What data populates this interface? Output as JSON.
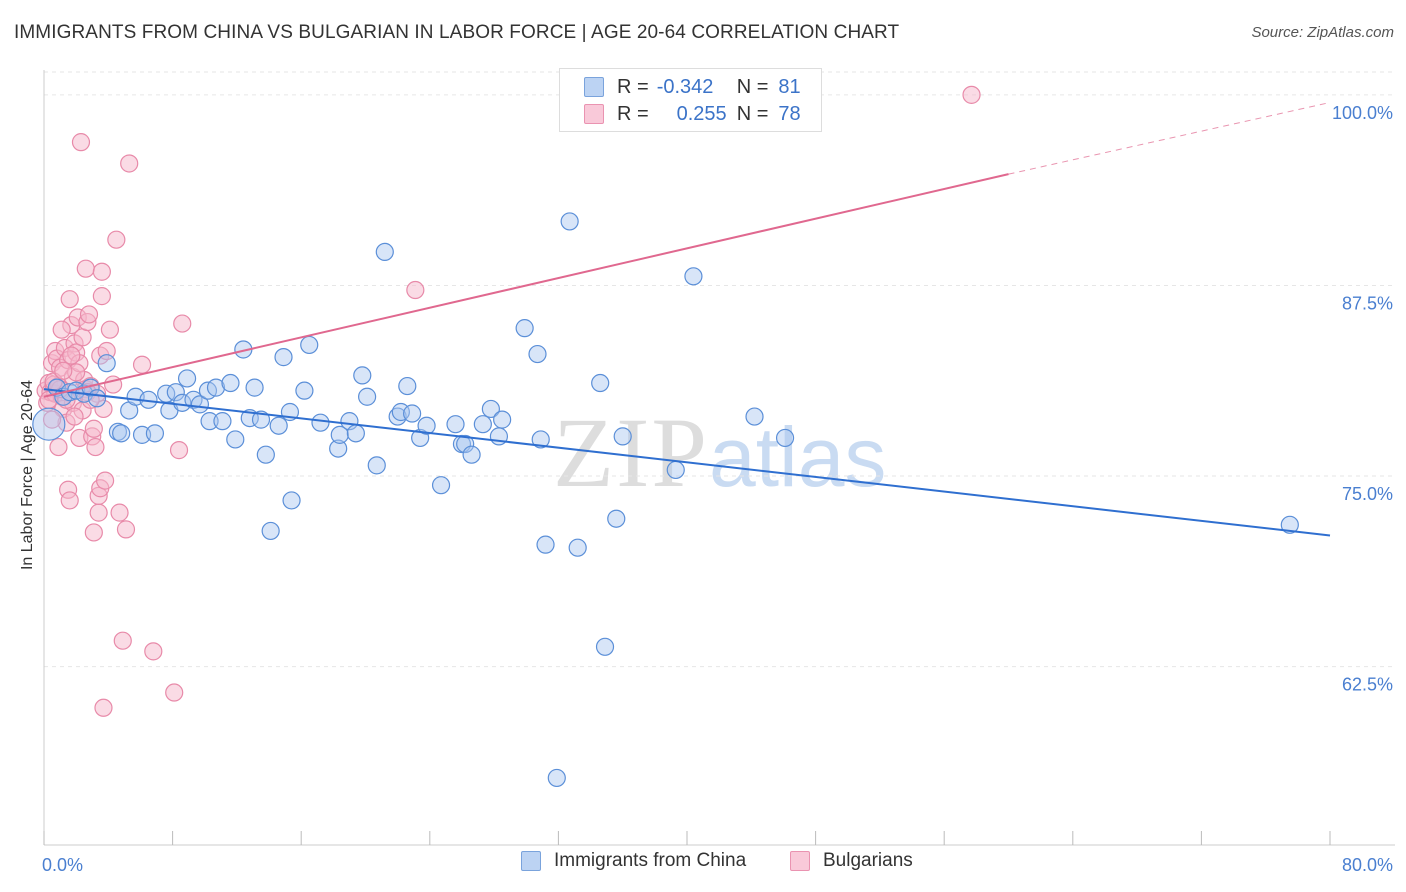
{
  "header": {
    "title": "IMMIGRANTS FROM CHINA VS BULGARIAN IN LABOR FORCE | AGE 20-64 CORRELATION CHART",
    "source": "Source: ZipAtlas.com"
  },
  "watermark": {
    "zip": "ZIP",
    "atlas": "atlas"
  },
  "legend_top": {
    "rows": [
      {
        "r_label": "R =",
        "r_value": "-0.342",
        "n_label": "N =",
        "n_value": "81"
      },
      {
        "r_label": "R =",
        "r_value": "0.255",
        "n_label": "N =",
        "n_value": "78"
      }
    ]
  },
  "legend_bottom": {
    "items": [
      {
        "label": "Immigrants from China"
      },
      {
        "label": "Bulgarians"
      }
    ]
  },
  "colors": {
    "china_fill": "#a9c6f0",
    "china_stroke": "#5b8fd8",
    "china_line": "#2f6fd0",
    "bulgarian_fill": "#f6b7cc",
    "bulgarian_stroke": "#e88aa9",
    "bulgarian_line": "#e0688f",
    "tick_text": "#4a7fd0",
    "grid": "#e6e6e6"
  },
  "chart_data": {
    "type": "scatter",
    "title": "IMMIGRANTS FROM CHINA VS BULGARIAN IN LABOR FORCE | AGE 20-64 CORRELATION CHART",
    "xlabel": "",
    "ylabel": "In Labor Force | Age 20-64",
    "xlim": [
      0,
      80
    ],
    "ylim": [
      50.8,
      101.5
    ],
    "x_tick_labels": [
      "0.0%",
      "80.0%"
    ],
    "y_ticks": [
      62.5,
      75.0,
      87.5,
      100.0
    ],
    "y_tick_labels": [
      "62.5%",
      "75.0%",
      "87.5%",
      "100.0%"
    ],
    "grid": "horizontal dashed",
    "legend_position": "top-center and bottom",
    "series": [
      {
        "name": "Immigrants from China",
        "r": -0.342,
        "n": 81,
        "trend": {
          "x": [
            0,
            80
          ],
          "y": [
            80.7,
            71.1
          ],
          "dashed_from": null
        },
        "points": [
          [
            0.3,
            78.4
          ],
          [
            0.8,
            80.8
          ],
          [
            1.2,
            80.2
          ],
          [
            1.6,
            80.5
          ],
          [
            2.0,
            80.6
          ],
          [
            2.5,
            80.4
          ],
          [
            2.9,
            80.8
          ],
          [
            3.3,
            80.1
          ],
          [
            3.9,
            82.4
          ],
          [
            4.6,
            77.9
          ],
          [
            4.8,
            77.8
          ],
          [
            5.3,
            79.3
          ],
          [
            5.7,
            80.2
          ],
          [
            6.1,
            77.7
          ],
          [
            6.5,
            80.0
          ],
          [
            6.9,
            77.8
          ],
          [
            7.6,
            80.4
          ],
          [
            7.8,
            79.3
          ],
          [
            8.2,
            80.5
          ],
          [
            8.6,
            79.8
          ],
          [
            8.9,
            81.4
          ],
          [
            9.3,
            80.0
          ],
          [
            9.7,
            79.7
          ],
          [
            10.2,
            80.6
          ],
          [
            10.3,
            78.6
          ],
          [
            10.7,
            80.8
          ],
          [
            11.1,
            78.6
          ],
          [
            11.6,
            81.1
          ],
          [
            11.9,
            77.4
          ],
          [
            12.4,
            83.3
          ],
          [
            12.8,
            78.8
          ],
          [
            13.1,
            80.8
          ],
          [
            13.5,
            78.7
          ],
          [
            13.8,
            76.4
          ],
          [
            14.1,
            71.4
          ],
          [
            14.6,
            78.3
          ],
          [
            14.9,
            82.8
          ],
          [
            15.3,
            79.2
          ],
          [
            15.4,
            73.4
          ],
          [
            16.2,
            80.6
          ],
          [
            16.5,
            83.6
          ],
          [
            17.2,
            78.5
          ],
          [
            18.3,
            76.8
          ],
          [
            18.4,
            77.7
          ],
          [
            19.0,
            78.6
          ],
          [
            19.4,
            77.8
          ],
          [
            19.8,
            81.6
          ],
          [
            20.1,
            80.2
          ],
          [
            20.7,
            75.7
          ],
          [
            21.2,
            89.7
          ],
          [
            22.0,
            78.9
          ],
          [
            22.2,
            79.2
          ],
          [
            22.6,
            80.9
          ],
          [
            22.9,
            79.1
          ],
          [
            23.4,
            77.5
          ],
          [
            23.8,
            78.3
          ],
          [
            24.7,
            74.4
          ],
          [
            25.6,
            78.4
          ],
          [
            26.0,
            77.1
          ],
          [
            26.2,
            77.1
          ],
          [
            26.6,
            76.4
          ],
          [
            27.3,
            78.4
          ],
          [
            27.8,
            79.4
          ],
          [
            28.3,
            77.6
          ],
          [
            28.5,
            78.7
          ],
          [
            29.9,
            84.7
          ],
          [
            30.7,
            83.0
          ],
          [
            30.9,
            77.4
          ],
          [
            31.2,
            70.5
          ],
          [
            31.9,
            55.2
          ],
          [
            32.7,
            91.7
          ],
          [
            33.2,
            70.3
          ],
          [
            34.6,
            81.1
          ],
          [
            34.9,
            63.8
          ],
          [
            35.6,
            72.2
          ],
          [
            36.0,
            77.6
          ],
          [
            39.3,
            75.4
          ],
          [
            46.1,
            77.5
          ],
          [
            77.5,
            71.8
          ],
          [
            40.4,
            88.1
          ],
          [
            44.2,
            78.9
          ]
        ]
      },
      {
        "name": "Bulgarians",
        "r": 0.255,
        "n": 78,
        "trend": {
          "x": [
            0,
            60
          ],
          "y": [
            80.2,
            94.8
          ],
          "dashed_to": [
            80,
            99.5
          ]
        },
        "points": [
          [
            0.1,
            80.6
          ],
          [
            0.2,
            79.8
          ],
          [
            0.3,
            81.1
          ],
          [
            0.4,
            80.5
          ],
          [
            0.5,
            82.4
          ],
          [
            0.6,
            81.0
          ],
          [
            0.7,
            83.2
          ],
          [
            0.7,
            80.4
          ],
          [
            0.8,
            82.7
          ],
          [
            0.9,
            80.9
          ],
          [
            1.0,
            82.1
          ],
          [
            1.1,
            80.2
          ],
          [
            1.2,
            79.4
          ],
          [
            1.3,
            83.4
          ],
          [
            1.4,
            78.5
          ],
          [
            1.5,
            82.6
          ],
          [
            1.5,
            74.1
          ],
          [
            1.6,
            73.4
          ],
          [
            1.6,
            86.6
          ],
          [
            1.7,
            84.9
          ],
          [
            1.8,
            81.5
          ],
          [
            1.8,
            79.8
          ],
          [
            1.9,
            83.7
          ],
          [
            2.0,
            83.1
          ],
          [
            2.1,
            85.4
          ],
          [
            2.2,
            82.4
          ],
          [
            2.2,
            77.5
          ],
          [
            2.3,
            96.9
          ],
          [
            2.4,
            84.1
          ],
          [
            2.5,
            81.3
          ],
          [
            2.6,
            80.7
          ],
          [
            2.6,
            88.6
          ],
          [
            2.7,
            85.1
          ],
          [
            2.8,
            85.6
          ],
          [
            2.9,
            80.9
          ],
          [
            3.0,
            77.6
          ],
          [
            3.1,
            78.1
          ],
          [
            3.1,
            71.3
          ],
          [
            3.2,
            76.9
          ],
          [
            3.3,
            80.4
          ],
          [
            3.4,
            72.6
          ],
          [
            3.4,
            73.7
          ],
          [
            3.5,
            82.9
          ],
          [
            3.5,
            74.2
          ],
          [
            3.6,
            88.4
          ],
          [
            3.6,
            86.8
          ],
          [
            3.7,
            79.4
          ],
          [
            3.8,
            74.7
          ],
          [
            3.9,
            83.2
          ],
          [
            4.1,
            84.6
          ],
          [
            4.3,
            81.0
          ],
          [
            4.5,
            90.5
          ],
          [
            4.7,
            72.6
          ],
          [
            5.1,
            71.5
          ],
          [
            4.9,
            64.2
          ],
          [
            5.3,
            95.5
          ],
          [
            6.1,
            82.3
          ],
          [
            6.8,
            63.5
          ],
          [
            8.1,
            60.8
          ],
          [
            8.4,
            76.7
          ],
          [
            8.6,
            85.0
          ],
          [
            3.7,
            59.8
          ],
          [
            23.1,
            87.2
          ],
          [
            57.7,
            100.0
          ],
          [
            0.9,
            76.9
          ],
          [
            1.1,
            84.6
          ],
          [
            0.5,
            78.7
          ],
          [
            1.4,
            80.0
          ],
          [
            2.7,
            80.5
          ],
          [
            0.3,
            80.0
          ],
          [
            1.0,
            80.7
          ],
          [
            2.0,
            81.8
          ],
          [
            2.4,
            79.3
          ],
          [
            1.7,
            82.9
          ],
          [
            0.6,
            81.2
          ],
          [
            1.2,
            81.9
          ],
          [
            2.9,
            80.0
          ],
          [
            1.9,
            78.9
          ]
        ]
      }
    ]
  }
}
